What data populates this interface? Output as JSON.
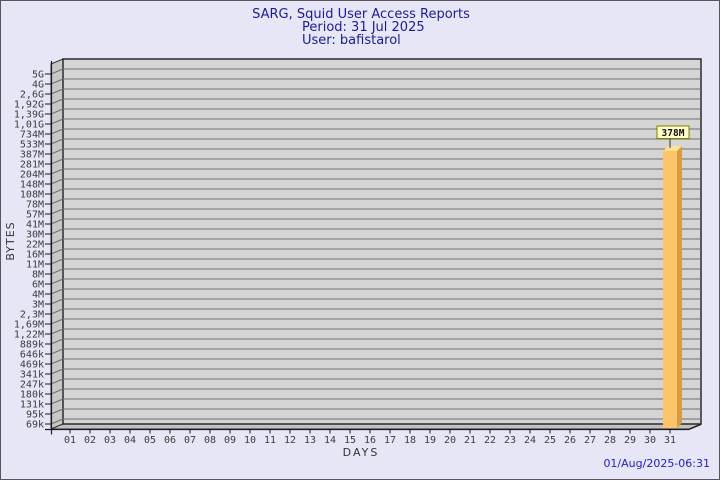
{
  "header": {
    "title": "SARG, Squid User Access Reports",
    "period": "Period: 31 Jul 2025",
    "user": "User: bafistarol"
  },
  "footer": {
    "timestamp": "01/Aug/2025-06:31"
  },
  "chart_data": {
    "type": "bar",
    "title": "SARG, Squid User Access Reports",
    "subtitle": "Period: 31 Jul 2025 — User: bafistarol",
    "xlabel": "DAYS",
    "ylabel": "BYTES",
    "y_scale": "logarithmic-like",
    "y_ticks": [
      "5G",
      "4G",
      "2,6G",
      "1,92G",
      "1,39G",
      "1,01G",
      "734M",
      "533M",
      "387M",
      "281M",
      "204M",
      "148M",
      "108M",
      "78M",
      "57M",
      "41M",
      "30M",
      "22M",
      "16M",
      "11M",
      "8M",
      "6M",
      "4M",
      "3M",
      "2,3M",
      "1,69M",
      "1,22M",
      "889k",
      "646k",
      "469k",
      "341k",
      "247k",
      "180k",
      "131k",
      "95k",
      "69k"
    ],
    "x_ticks": [
      "01",
      "02",
      "03",
      "04",
      "05",
      "06",
      "07",
      "08",
      "09",
      "10",
      "11",
      "12",
      "13",
      "14",
      "15",
      "16",
      "17",
      "18",
      "19",
      "20",
      "21",
      "22",
      "23",
      "24",
      "25",
      "26",
      "27",
      "28",
      "29",
      "30",
      "31"
    ],
    "series": [
      {
        "name": "bytes",
        "points": [
          {
            "day": "31",
            "value_label": "378M",
            "value_bytes_approx": 396361728
          }
        ]
      }
    ],
    "bar": {
      "day": "31",
      "value_label": "378M"
    },
    "colors": {
      "background": "#e6e6f6",
      "title": "#1c1c96",
      "timestamp": "#2121c8",
      "plot_face": "#d5d5d5",
      "wall": "#c8c8c8",
      "floor": "#c2c2c2",
      "grid": "#6e6e6e",
      "axis": "#1a1a1a",
      "bar_front": "#fdc56b",
      "bar_side": "#d99b40",
      "bar_top": "#ffe194",
      "value_box_bg": "#ffffc6",
      "value_box_border": "#7d7d01"
    }
  }
}
